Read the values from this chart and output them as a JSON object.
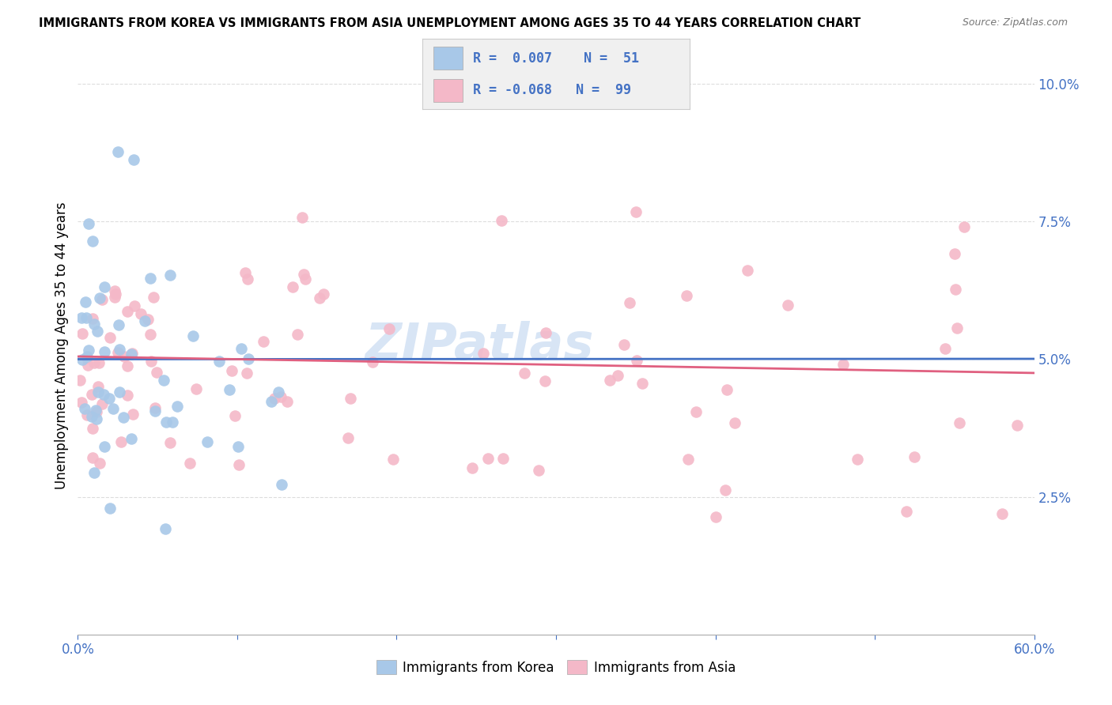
{
  "title": "IMMIGRANTS FROM KOREA VS IMMIGRANTS FROM ASIA UNEMPLOYMENT AMONG AGES 35 TO 44 YEARS CORRELATION CHART",
  "source": "Source: ZipAtlas.com",
  "ylabel": "Unemployment Among Ages 35 to 44 years",
  "xlim": [
    0.0,
    0.6
  ],
  "ylim": [
    0.0,
    0.105
  ],
  "yticks": [
    0.025,
    0.05,
    0.075,
    0.1
  ],
  "ytick_labels": [
    "2.5%",
    "5.0%",
    "7.5%",
    "10.0%"
  ],
  "xticks": [
    0.0,
    0.1,
    0.2,
    0.3,
    0.4,
    0.5,
    0.6
  ],
  "xtick_labels": [
    "0.0%",
    "",
    "",
    "",
    "",
    "",
    "60.0%"
  ],
  "legend_korea_r": "0.007",
  "legend_korea_n": "51",
  "legend_asia_r": "-0.068",
  "legend_asia_n": "99",
  "korea_color": "#a8c8e8",
  "asia_color": "#f4b8c8",
  "korea_line_color": "#4472c4",
  "asia_line_color": "#e06080",
  "blue_color": "#4472c4",
  "legend_bg": "#f0f0f0",
  "legend_border": "#cccccc",
  "grid_color": "#dddddd",
  "bottom_spine_color": "#aaaaaa"
}
